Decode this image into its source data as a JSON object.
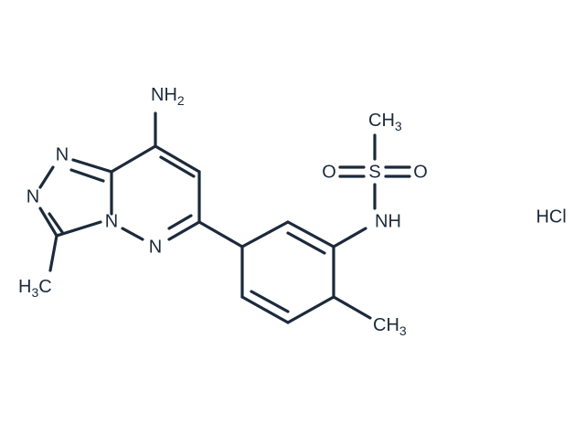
{
  "molecule": {
    "labels": [
      {
        "main": "NH",
        "sub": "2"
      },
      {
        "main": "N"
      },
      {
        "main": "N"
      },
      {
        "main": "N"
      },
      {
        "main": "N"
      },
      {
        "main": "H",
        "sub": "3",
        "tail": "C"
      },
      {
        "main": "NH"
      },
      {
        "main": "S"
      },
      {
        "main": "O"
      },
      {
        "main": "O"
      },
      {
        "main": "CH",
        "sub": "3"
      },
      {
        "main": "CH",
        "sub": "3"
      }
    ],
    "salt": "HCl"
  }
}
